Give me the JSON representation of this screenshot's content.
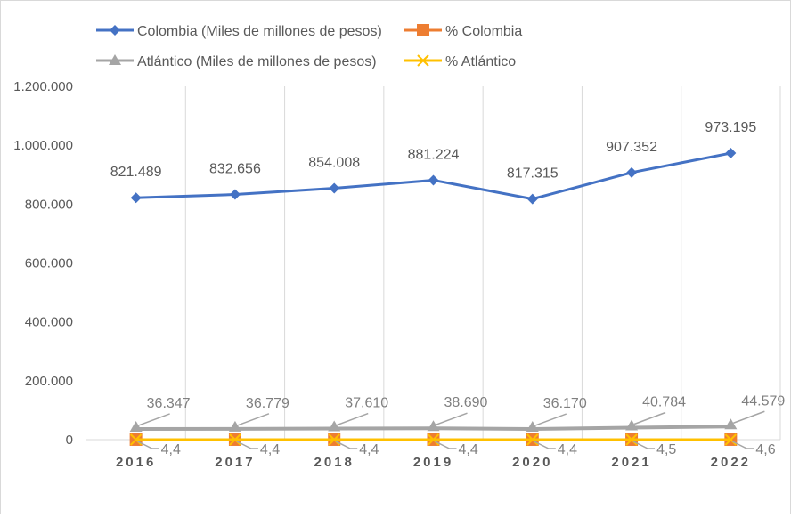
{
  "chart_data": {
    "type": "line",
    "title": "",
    "xlabel": "",
    "ylabel": "",
    "categories": [
      "2016",
      "2017",
      "2018",
      "2019",
      "2020",
      "2021",
      "2022"
    ],
    "ylim": [
      0,
      1200000
    ],
    "yticks": [
      0,
      200000,
      400000,
      600000,
      800000,
      1000000,
      1200000
    ],
    "ytick_labels": [
      "0",
      "200.000",
      "400.000",
      "600.000",
      "800.000",
      "1.000.000",
      "1.200.000"
    ],
    "grid": "vertical",
    "legend_position": "top",
    "series": [
      {
        "name": "Colombia (Miles de millones de pesos)",
        "color": "#4472c4",
        "marker": "diamond",
        "values": [
          821489,
          832656,
          854008,
          881224,
          817315,
          907352,
          973195
        ],
        "labels": [
          "821.489",
          "832.656",
          "854.008",
          "881.224",
          "817.315",
          "907.352",
          "973.195"
        ]
      },
      {
        "name": "%  Colombia",
        "color": "#ed7d31",
        "marker": "square",
        "values": [
          100,
          100,
          100,
          100,
          100,
          100,
          100
        ],
        "labels": []
      },
      {
        "name": "Atlántico (Miles de millones de pesos)",
        "color": "#a5a5a5",
        "marker": "triangle",
        "values": [
          36347,
          36779,
          37610,
          38690,
          36170,
          40784,
          44579
        ],
        "labels": [
          "36.347",
          "36.779",
          "37.610",
          "38.690",
          "36.170",
          "40.784",
          "44.579"
        ]
      },
      {
        "name": "% Atlántico",
        "color": "#ffc000",
        "marker": "x",
        "values": [
          4.4,
          4.4,
          4.4,
          4.4,
          4.4,
          4.5,
          4.6
        ],
        "labels": [
          "4,4",
          "4,4",
          "4,4",
          "4,4",
          "4,4",
          "4,5",
          "4,6"
        ]
      }
    ]
  }
}
